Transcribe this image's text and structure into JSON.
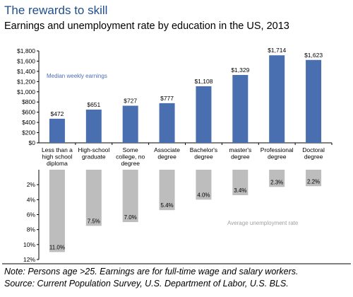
{
  "title": "The rewards to skill",
  "subtitle": "Earnings and unemployment rate by education in the US, 2013",
  "chart_data": [
    {
      "type": "bar",
      "categories": [
        "Less than a high school diploma",
        "High-school graduate",
        "Some college, no degree",
        "Associate degree",
        "Bachelor's degree",
        "master's degree",
        "Professional degree",
        "Doctoral degree"
      ],
      "category_lines": [
        [
          "Less than a",
          "high school",
          "diploma"
        ],
        [
          "High-school",
          "graduate"
        ],
        [
          "Some",
          "college, no",
          "degree"
        ],
        [
          "Associate",
          "degree"
        ],
        [
          "Bachelor's",
          "degree"
        ],
        [
          "master's",
          "degree"
        ],
        [
          "Professional",
          "degree"
        ],
        [
          "Doctoral",
          "degree"
        ]
      ],
      "series": [
        {
          "name": "Median weekly earnings",
          "values": [
            472,
            651,
            727,
            777,
            1108,
            1329,
            1714,
            1623
          ],
          "labels": [
            "$472",
            "$651",
            "$727",
            "$777",
            "$1,108",
            "$1,329",
            "$1,714",
            "$1,623"
          ]
        }
      ],
      "ylim": [
        0,
        1800
      ],
      "ytick_values": [
        0,
        200,
        400,
        600,
        800,
        1000,
        1200,
        1400,
        1600,
        1800
      ],
      "ytick_labels": [
        "$0",
        "$200",
        "$400",
        "$600",
        "$800",
        "$1,000",
        "$1,200",
        "$1,400",
        "$1,600",
        "$1,800"
      ],
      "color": "#4a6fb0"
    },
    {
      "type": "bar",
      "orientation": "downward",
      "categories": [
        "Less than a high school diploma",
        "High-school graduate",
        "Some college, no degree",
        "Associate degree",
        "Bachelor's degree",
        "master's degree",
        "Professional degree",
        "Doctoral degree"
      ],
      "series": [
        {
          "name": "Average unemployment rate",
          "values": [
            11.0,
            7.5,
            7.0,
            5.4,
            4.0,
            3.4,
            2.3,
            2.2
          ],
          "labels": [
            "11.0%",
            "7.5%",
            "7.0%",
            "5.4%",
            "4.0%",
            "3.4%",
            "2.3%",
            "2.2%"
          ]
        }
      ],
      "ylim": [
        0,
        12
      ],
      "ytick_values": [
        2,
        4,
        6,
        8,
        10,
        12
      ],
      "ytick_labels": [
        "2%",
        "4%",
        "6%",
        "8%",
        "10%",
        "12%"
      ],
      "color": "#bdbdbd"
    }
  ],
  "note": "Note: Persons age >25. Earnings are for full-time wage and salary workers.",
  "source": "Source: Current Population Survey, U.S. Department of Labor, U.S. BLS."
}
